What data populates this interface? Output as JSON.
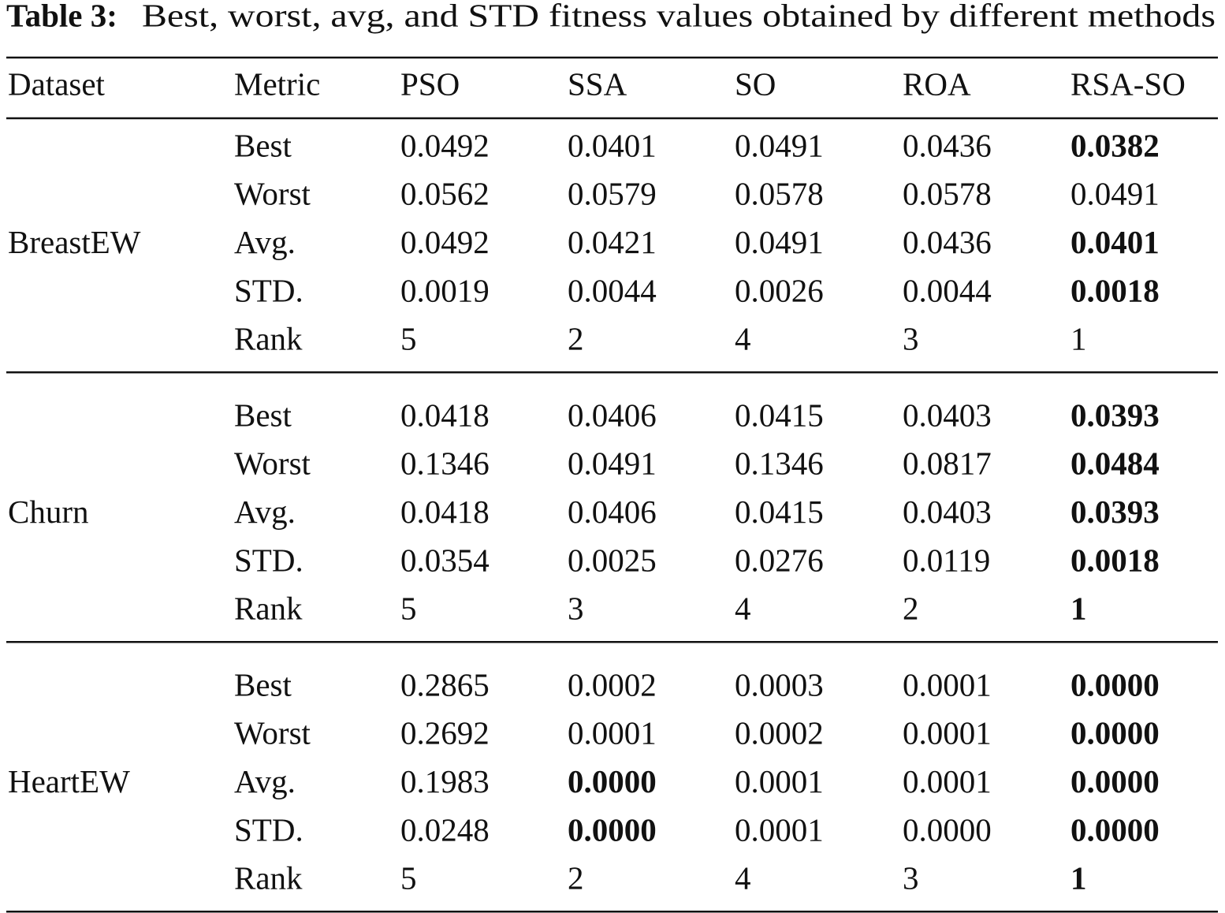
{
  "caption": {
    "label": "Table 3:",
    "text": "Best, worst, avg, and STD fitness values obtained by different methods"
  },
  "table": {
    "header": [
      "Dataset",
      "Metric",
      "PSO",
      "SSA",
      "SO",
      "ROA",
      "RSA-SO"
    ],
    "groups": [
      {
        "dataset": "BreastEW",
        "rows": [
          {
            "metric": "Best",
            "values": [
              "0.0492",
              "0.0401",
              "0.0491",
              "0.0436",
              "0.0382"
            ],
            "bold": [
              4
            ]
          },
          {
            "metric": "Worst",
            "values": [
              "0.0562",
              "0.0579",
              "0.0578",
              "0.0578",
              "0.0491"
            ],
            "bold": []
          },
          {
            "metric": "Avg.",
            "values": [
              "0.0492",
              "0.0421",
              "0.0491",
              "0.0436",
              "0.0401"
            ],
            "bold": [
              4
            ]
          },
          {
            "metric": "STD.",
            "values": [
              "0.0019",
              "0.0044",
              "0.0026",
              "0.0044",
              "0.0018"
            ],
            "bold": [
              4
            ]
          },
          {
            "metric": "Rank",
            "values": [
              "5",
              "2",
              "4",
              "3",
              "1"
            ],
            "bold": []
          }
        ]
      },
      {
        "dataset": "Churn",
        "rows": [
          {
            "metric": "Best",
            "values": [
              "0.0418",
              "0.0406",
              "0.0415",
              "0.0403",
              "0.0393"
            ],
            "bold": [
              4
            ]
          },
          {
            "metric": "Worst",
            "values": [
              "0.1346",
              "0.0491",
              "0.1346",
              "0.0817",
              "0.0484"
            ],
            "bold": [
              4
            ]
          },
          {
            "metric": "Avg.",
            "values": [
              "0.0418",
              "0.0406",
              "0.0415",
              "0.0403",
              "0.0393"
            ],
            "bold": [
              4
            ]
          },
          {
            "metric": "STD.",
            "values": [
              "0.0354",
              "0.0025",
              "0.0276",
              "0.0119",
              "0.0018"
            ],
            "bold": [
              4
            ]
          },
          {
            "metric": "Rank",
            "values": [
              "5",
              "3",
              "4",
              "2",
              "1"
            ],
            "bold": [
              4
            ]
          }
        ]
      },
      {
        "dataset": "HeartEW",
        "rows": [
          {
            "metric": "Best",
            "values": [
              "0.2865",
              "0.0002",
              "0.0003",
              "0.0001",
              "0.0000"
            ],
            "bold": [
              4
            ]
          },
          {
            "metric": "Worst",
            "values": [
              "0.2692",
              "0.0001",
              "0.0002",
              "0.0001",
              "0.0000"
            ],
            "bold": [
              4
            ]
          },
          {
            "metric": "Avg.",
            "values": [
              "0.1983",
              "0.0000",
              "0.0001",
              "0.0001",
              "0.0000"
            ],
            "bold": [
              1,
              4
            ]
          },
          {
            "metric": "STD.",
            "values": [
              "0.0248",
              "0.0000",
              "0.0001",
              "0.0000",
              "0.0000"
            ],
            "bold": [
              1,
              4
            ]
          },
          {
            "metric": "Rank",
            "values": [
              "5",
              "2",
              "4",
              "3",
              "1"
            ],
            "bold": [
              4
            ]
          }
        ]
      }
    ]
  }
}
